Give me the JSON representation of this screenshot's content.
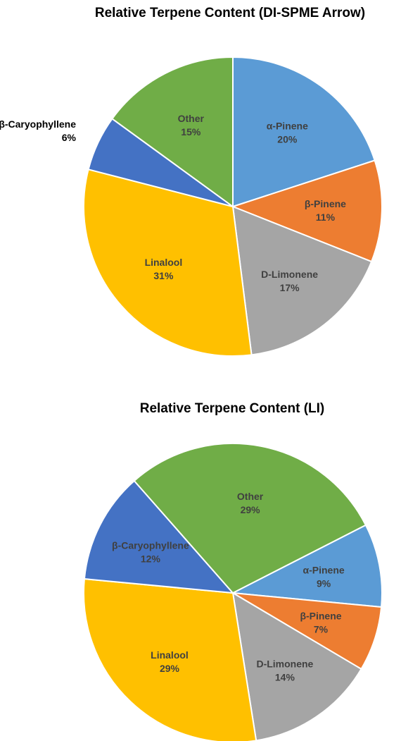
{
  "chart_data": [
    {
      "type": "pie",
      "title": "Relative Terpene Content (DI-SPME Arrow)",
      "start_angle_deg": 0,
      "direction": "clockwise",
      "slices": [
        {
          "name": "α-Pinene",
          "value": 20,
          "value_label": "20%",
          "color": "#5b9bd5",
          "label_color": "#404040",
          "label_outside": false
        },
        {
          "name": "β-Pinene",
          "value": 11,
          "value_label": "11%",
          "color": "#ed7d31",
          "label_color": "#404040",
          "label_outside": false
        },
        {
          "name": "D-Limonene",
          "value": 17,
          "value_label": "17%",
          "color": "#a5a5a5",
          "label_color": "#404040",
          "label_outside": false
        },
        {
          "name": "Linalool",
          "value": 31,
          "value_label": "31%",
          "color": "#ffc000",
          "label_color": "#404040",
          "label_outside": false
        },
        {
          "name": "β-Caryophyllene",
          "value": 6,
          "value_label": "6%",
          "color": "#4472c4",
          "label_color": "#000000",
          "label_outside": true
        },
        {
          "name": "Other",
          "value": 15,
          "value_label": "15%",
          "color": "#70ad47",
          "label_color": "#404040",
          "label_outside": false
        }
      ]
    },
    {
      "type": "pie",
      "title": "Relative Terpene Content (LI)",
      "start_angle_deg": 63,
      "direction": "clockwise",
      "slices": [
        {
          "name": "α-Pinene",
          "value": 9,
          "value_label": "9%",
          "color": "#5b9bd5",
          "label_color": "#404040",
          "label_outside": false
        },
        {
          "name": "β-Pinene",
          "value": 7,
          "value_label": "7%",
          "color": "#ed7d31",
          "label_color": "#404040",
          "label_outside": false
        },
        {
          "name": "D-Limonene",
          "value": 14,
          "value_label": "14%",
          "color": "#a5a5a5",
          "label_color": "#404040",
          "label_outside": false
        },
        {
          "name": "Linalool",
          "value": 29,
          "value_label": "29%",
          "color": "#ffc000",
          "label_color": "#404040",
          "label_outside": false
        },
        {
          "name": "β-Caryophyllene",
          "value": 12,
          "value_label": "12%",
          "color": "#4472c4",
          "label_color": "#404040",
          "label_outside": false
        },
        {
          "name": "Other",
          "value": 29,
          "value_label": "29%",
          "color": "#70ad47",
          "label_color": "#404040",
          "label_outside": false
        }
      ]
    }
  ]
}
